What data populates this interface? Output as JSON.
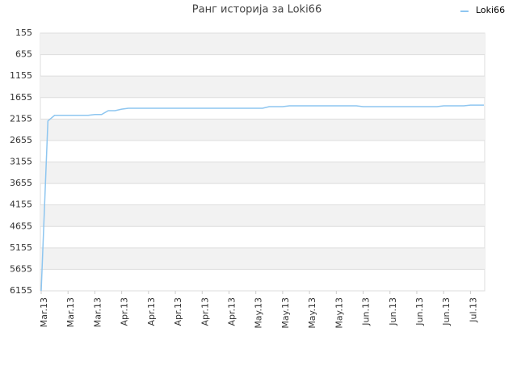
{
  "chart_data": {
    "type": "line",
    "title": "Ранг историја за Loki66",
    "categories": [
      "Mar.13",
      null,
      null,
      null,
      "Mar.13",
      null,
      null,
      null,
      "Mar.13",
      null,
      null,
      null,
      "Apr.13",
      null,
      null,
      null,
      "Apr.13",
      null,
      null,
      null,
      "Apr.13",
      null,
      null,
      null,
      "Apr.13",
      null,
      null,
      null,
      "Apr.13",
      null,
      null,
      null,
      "May.13",
      null,
      null,
      null,
      "May.13",
      null,
      null,
      null,
      "May.13",
      null,
      null,
      null,
      "May.13",
      null,
      null,
      null,
      "Jun.13",
      null,
      null,
      null,
      "Jun.13",
      null,
      null,
      null,
      "Jun.13",
      null,
      null,
      null,
      "Jun.13",
      null,
      null,
      null,
      "Jul.13",
      null,
      null
    ],
    "series": [
      {
        "name": "Loki66",
        "color": "#8ec6f0",
        "values": [
          6155,
          2200,
          2070,
          2070,
          2070,
          2070,
          2070,
          2070,
          2050,
          2050,
          1960,
          1960,
          1925,
          1905,
          1905,
          1905,
          1905,
          1905,
          1905,
          1905,
          1905,
          1905,
          1905,
          1905,
          1905,
          1905,
          1905,
          1905,
          1905,
          1905,
          1905,
          1905,
          1905,
          1905,
          1867,
          1867,
          1867,
          1848,
          1848,
          1848,
          1848,
          1848,
          1848,
          1848,
          1848,
          1848,
          1848,
          1848,
          1867,
          1867,
          1867,
          1867,
          1867,
          1867,
          1867,
          1867,
          1867,
          1867,
          1867,
          1867,
          1848,
          1848,
          1848,
          1848,
          1830,
          1830,
          1830
        ]
      }
    ],
    "ylim": [
      155,
      6155
    ],
    "yticks": [
      155,
      655,
      1155,
      1655,
      2155,
      2655,
      3155,
      3655,
      4155,
      4655,
      5155,
      5655,
      6155
    ],
    "inverted": true,
    "bands": true,
    "legend": "top-right"
  }
}
